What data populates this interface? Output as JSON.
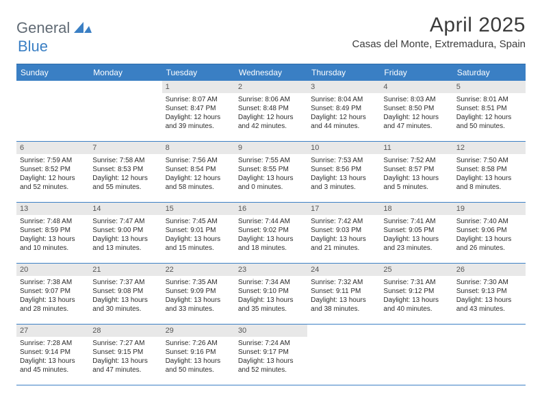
{
  "logo": {
    "text1": "General",
    "text2": "Blue",
    "text_color": "#606a74",
    "accent_color": "#3a7fc4"
  },
  "header": {
    "title": "April 2025",
    "subtitle": "Casas del Monte, Extremadura, Spain"
  },
  "colors": {
    "header_bg": "#3a7fc4",
    "header_text": "#ffffff",
    "daynum_bg": "#e8e8e8",
    "row_border": "#3a7fc4",
    "body_text": "#2b2b2b",
    "background": "#ffffff"
  },
  "days_of_week": [
    "Sunday",
    "Monday",
    "Tuesday",
    "Wednesday",
    "Thursday",
    "Friday",
    "Saturday"
  ],
  "weeks": [
    [
      null,
      null,
      {
        "n": "1",
        "sunrise": "Sunrise: 8:07 AM",
        "sunset": "Sunset: 8:47 PM",
        "day1": "Daylight: 12 hours",
        "day2": "and 39 minutes."
      },
      {
        "n": "2",
        "sunrise": "Sunrise: 8:06 AM",
        "sunset": "Sunset: 8:48 PM",
        "day1": "Daylight: 12 hours",
        "day2": "and 42 minutes."
      },
      {
        "n": "3",
        "sunrise": "Sunrise: 8:04 AM",
        "sunset": "Sunset: 8:49 PM",
        "day1": "Daylight: 12 hours",
        "day2": "and 44 minutes."
      },
      {
        "n": "4",
        "sunrise": "Sunrise: 8:03 AM",
        "sunset": "Sunset: 8:50 PM",
        "day1": "Daylight: 12 hours",
        "day2": "and 47 minutes."
      },
      {
        "n": "5",
        "sunrise": "Sunrise: 8:01 AM",
        "sunset": "Sunset: 8:51 PM",
        "day1": "Daylight: 12 hours",
        "day2": "and 50 minutes."
      }
    ],
    [
      {
        "n": "6",
        "sunrise": "Sunrise: 7:59 AM",
        "sunset": "Sunset: 8:52 PM",
        "day1": "Daylight: 12 hours",
        "day2": "and 52 minutes."
      },
      {
        "n": "7",
        "sunrise": "Sunrise: 7:58 AM",
        "sunset": "Sunset: 8:53 PM",
        "day1": "Daylight: 12 hours",
        "day2": "and 55 minutes."
      },
      {
        "n": "8",
        "sunrise": "Sunrise: 7:56 AM",
        "sunset": "Sunset: 8:54 PM",
        "day1": "Daylight: 12 hours",
        "day2": "and 58 minutes."
      },
      {
        "n": "9",
        "sunrise": "Sunrise: 7:55 AM",
        "sunset": "Sunset: 8:55 PM",
        "day1": "Daylight: 13 hours",
        "day2": "and 0 minutes."
      },
      {
        "n": "10",
        "sunrise": "Sunrise: 7:53 AM",
        "sunset": "Sunset: 8:56 PM",
        "day1": "Daylight: 13 hours",
        "day2": "and 3 minutes."
      },
      {
        "n": "11",
        "sunrise": "Sunrise: 7:52 AM",
        "sunset": "Sunset: 8:57 PM",
        "day1": "Daylight: 13 hours",
        "day2": "and 5 minutes."
      },
      {
        "n": "12",
        "sunrise": "Sunrise: 7:50 AM",
        "sunset": "Sunset: 8:58 PM",
        "day1": "Daylight: 13 hours",
        "day2": "and 8 minutes."
      }
    ],
    [
      {
        "n": "13",
        "sunrise": "Sunrise: 7:48 AM",
        "sunset": "Sunset: 8:59 PM",
        "day1": "Daylight: 13 hours",
        "day2": "and 10 minutes."
      },
      {
        "n": "14",
        "sunrise": "Sunrise: 7:47 AM",
        "sunset": "Sunset: 9:00 PM",
        "day1": "Daylight: 13 hours",
        "day2": "and 13 minutes."
      },
      {
        "n": "15",
        "sunrise": "Sunrise: 7:45 AM",
        "sunset": "Sunset: 9:01 PM",
        "day1": "Daylight: 13 hours",
        "day2": "and 15 minutes."
      },
      {
        "n": "16",
        "sunrise": "Sunrise: 7:44 AM",
        "sunset": "Sunset: 9:02 PM",
        "day1": "Daylight: 13 hours",
        "day2": "and 18 minutes."
      },
      {
        "n": "17",
        "sunrise": "Sunrise: 7:42 AM",
        "sunset": "Sunset: 9:03 PM",
        "day1": "Daylight: 13 hours",
        "day2": "and 21 minutes."
      },
      {
        "n": "18",
        "sunrise": "Sunrise: 7:41 AM",
        "sunset": "Sunset: 9:05 PM",
        "day1": "Daylight: 13 hours",
        "day2": "and 23 minutes."
      },
      {
        "n": "19",
        "sunrise": "Sunrise: 7:40 AM",
        "sunset": "Sunset: 9:06 PM",
        "day1": "Daylight: 13 hours",
        "day2": "and 26 minutes."
      }
    ],
    [
      {
        "n": "20",
        "sunrise": "Sunrise: 7:38 AM",
        "sunset": "Sunset: 9:07 PM",
        "day1": "Daylight: 13 hours",
        "day2": "and 28 minutes."
      },
      {
        "n": "21",
        "sunrise": "Sunrise: 7:37 AM",
        "sunset": "Sunset: 9:08 PM",
        "day1": "Daylight: 13 hours",
        "day2": "and 30 minutes."
      },
      {
        "n": "22",
        "sunrise": "Sunrise: 7:35 AM",
        "sunset": "Sunset: 9:09 PM",
        "day1": "Daylight: 13 hours",
        "day2": "and 33 minutes."
      },
      {
        "n": "23",
        "sunrise": "Sunrise: 7:34 AM",
        "sunset": "Sunset: 9:10 PM",
        "day1": "Daylight: 13 hours",
        "day2": "and 35 minutes."
      },
      {
        "n": "24",
        "sunrise": "Sunrise: 7:32 AM",
        "sunset": "Sunset: 9:11 PM",
        "day1": "Daylight: 13 hours",
        "day2": "and 38 minutes."
      },
      {
        "n": "25",
        "sunrise": "Sunrise: 7:31 AM",
        "sunset": "Sunset: 9:12 PM",
        "day1": "Daylight: 13 hours",
        "day2": "and 40 minutes."
      },
      {
        "n": "26",
        "sunrise": "Sunrise: 7:30 AM",
        "sunset": "Sunset: 9:13 PM",
        "day1": "Daylight: 13 hours",
        "day2": "and 43 minutes."
      }
    ],
    [
      {
        "n": "27",
        "sunrise": "Sunrise: 7:28 AM",
        "sunset": "Sunset: 9:14 PM",
        "day1": "Daylight: 13 hours",
        "day2": "and 45 minutes."
      },
      {
        "n": "28",
        "sunrise": "Sunrise: 7:27 AM",
        "sunset": "Sunset: 9:15 PM",
        "day1": "Daylight: 13 hours",
        "day2": "and 47 minutes."
      },
      {
        "n": "29",
        "sunrise": "Sunrise: 7:26 AM",
        "sunset": "Sunset: 9:16 PM",
        "day1": "Daylight: 13 hours",
        "day2": "and 50 minutes."
      },
      {
        "n": "30",
        "sunrise": "Sunrise: 7:24 AM",
        "sunset": "Sunset: 9:17 PM",
        "day1": "Daylight: 13 hours",
        "day2": "and 52 minutes."
      },
      null,
      null,
      null
    ]
  ]
}
